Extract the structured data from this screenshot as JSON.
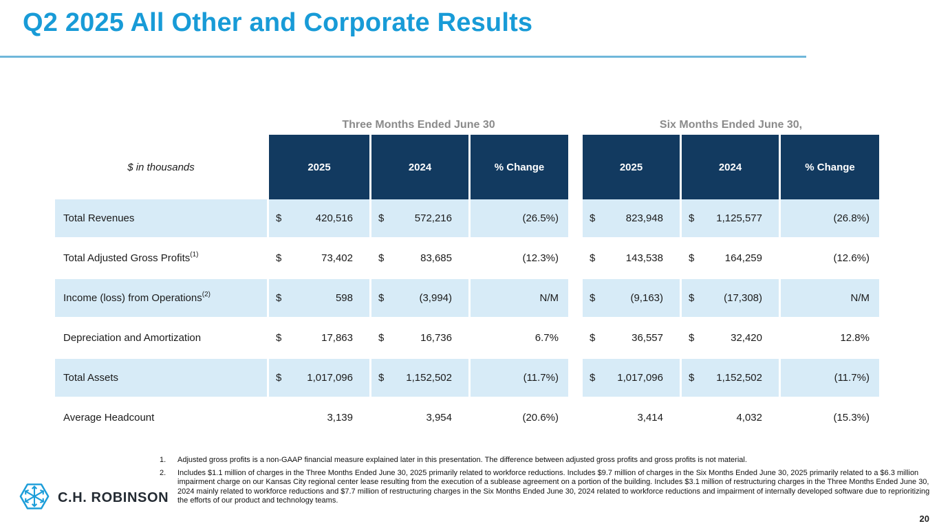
{
  "slide": {
    "title": "Q2 2025 All Other and Corporate Results",
    "page_number": "20"
  },
  "colors": {
    "accent_cyan": "#189BD7",
    "header_navy": "#123A60",
    "row_alt_blue": "#D7EBF7",
    "rule_blue": "#6FB7DA",
    "group_header_gray": "#8A8A8A"
  },
  "logo": {
    "icon": "hexagon-arrows-icon",
    "text": "C.H. ROBINSON"
  },
  "table": {
    "unit_label": "$ in thousands",
    "groups": [
      {
        "label": "Three Months Ended June 30"
      },
      {
        "label": "Six Months Ended June 30,"
      }
    ],
    "columns": [
      "2025",
      "2024",
      "% Change",
      "2025",
      "2024",
      "% Change"
    ],
    "rows": [
      {
        "label": "Total Revenues",
        "sup": "",
        "cells": [
          {
            "cur": "$",
            "val": "420,516"
          },
          {
            "cur": "$",
            "val": "572,216"
          },
          {
            "val": "(26.5%)",
            "type": "chg"
          },
          {
            "cur": "$",
            "val": "823,948"
          },
          {
            "cur": "$",
            "val": "1,125,577"
          },
          {
            "val": "(26.8%)",
            "type": "chg"
          }
        ]
      },
      {
        "label": "Total Adjusted Gross Profits",
        "sup": "(1)",
        "cells": [
          {
            "cur": "$",
            "val": "73,402"
          },
          {
            "cur": "$",
            "val": "83,685"
          },
          {
            "val": "(12.3%)",
            "type": "chg"
          },
          {
            "cur": "$",
            "val": "143,538"
          },
          {
            "cur": "$",
            "val": "164,259"
          },
          {
            "val": "(12.6%)",
            "type": "chg"
          }
        ]
      },
      {
        "label": "Income (loss) from Operations",
        "sup": "(2)",
        "cells": [
          {
            "cur": "$",
            "val": "598"
          },
          {
            "cur": "$",
            "val": "(3,994)"
          },
          {
            "val": "N/M",
            "type": "chg"
          },
          {
            "cur": "$",
            "val": "(9,163)"
          },
          {
            "cur": "$",
            "val": "(17,308)"
          },
          {
            "val": "N/M",
            "type": "chg"
          }
        ]
      },
      {
        "label": "Depreciation and Amortization",
        "sup": "",
        "cells": [
          {
            "cur": "$",
            "val": "17,863"
          },
          {
            "cur": "$",
            "val": "16,736"
          },
          {
            "val": "6.7%",
            "type": "chg"
          },
          {
            "cur": "$",
            "val": "36,557"
          },
          {
            "cur": "$",
            "val": "32,420"
          },
          {
            "val": "12.8%",
            "type": "chg"
          }
        ]
      },
      {
        "label": "Total Assets",
        "sup": "",
        "cells": [
          {
            "cur": "$",
            "val": "1,017,096"
          },
          {
            "cur": "$",
            "val": "1,152,502"
          },
          {
            "val": "(11.7%)",
            "type": "chg"
          },
          {
            "cur": "$",
            "val": "1,017,096"
          },
          {
            "cur": "$",
            "val": "1,152,502"
          },
          {
            "val": "(11.7%)",
            "type": "chg"
          }
        ]
      },
      {
        "label": "Average Headcount",
        "sup": "",
        "cells": [
          {
            "cur": "",
            "val": "3,139"
          },
          {
            "cur": "",
            "val": "3,954"
          },
          {
            "val": "(20.6%)",
            "type": "chg"
          },
          {
            "cur": "",
            "val": "3,414"
          },
          {
            "cur": "",
            "val": "4,032"
          },
          {
            "val": "(15.3%)",
            "type": "chg"
          }
        ]
      }
    ]
  },
  "footnotes": [
    {
      "num": "1.",
      "text": "Adjusted gross profits is a non-GAAP financial measure explained later in this presentation. The difference between adjusted gross profits and gross profits is not material."
    },
    {
      "num": "2.",
      "text": "Includes $1.1 million of charges in the Three Months Ended June 30, 2025 primarily related to workforce reductions. Includes $9.7 million of charges in the Six Months Ended June 30, 2025 primarily related to a $6.3 million impairment charge on our Kansas City regional center lease resulting from the execution of a sublease agreement on a portion of the building. Includes $3.1 million of restructuring charges in the Three Months Ended June 30, 2024 mainly related to workforce reductions and $7.7 million of restructuring charges in the Six Months Ended June 30, 2024 related to workforce reductions and impairment of internally developed software due to reprioritizing the efforts of our product and technology teams."
    }
  ]
}
